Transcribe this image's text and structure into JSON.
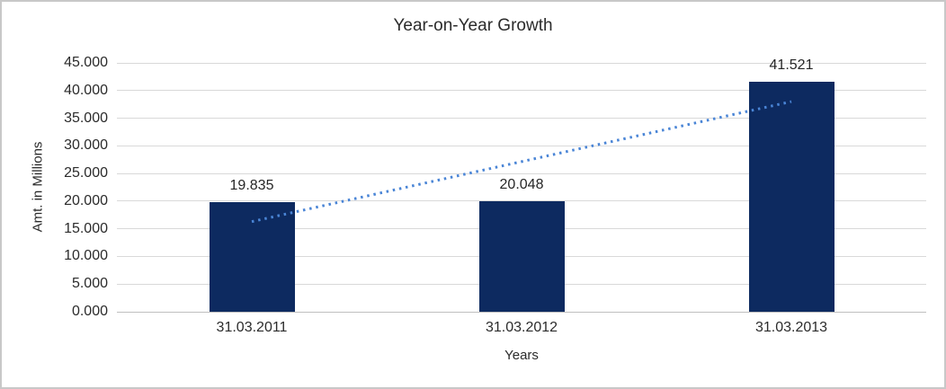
{
  "chart_data": {
    "type": "bar",
    "title": "Year-on-Year Growth",
    "xlabel": "Years",
    "ylabel": "Amt. in Millions",
    "categories": [
      "31.03.2011",
      "31.03.2012",
      "31.03.2013"
    ],
    "values": [
      19.835,
      20.048,
      41.521
    ],
    "value_labels": [
      "19.835",
      "20.048",
      "41.521"
    ],
    "ylim": [
      0,
      45
    ],
    "ytick_values": [
      0,
      5,
      10,
      15,
      20,
      25,
      30,
      35,
      40,
      45
    ],
    "ytick_labels": [
      "0.000",
      "5.000",
      "10.000",
      "15.000",
      "20.000",
      "25.000",
      "30.000",
      "35.000",
      "40.000",
      "45.000"
    ],
    "grid": true,
    "legend": "none",
    "trendline": {
      "type": "linear",
      "style": "dotted",
      "points_x": [
        0,
        2
      ],
      "points_y": [
        16.3,
        38.0
      ],
      "color": "#4a85d6"
    },
    "colors": {
      "bar": "#0d2a60",
      "gridline": "#d9d9d9",
      "axis_line": "#bfbfbf",
      "text": "#2b2b2b",
      "border": "#c8c8c8",
      "background": "#ffffff"
    }
  }
}
